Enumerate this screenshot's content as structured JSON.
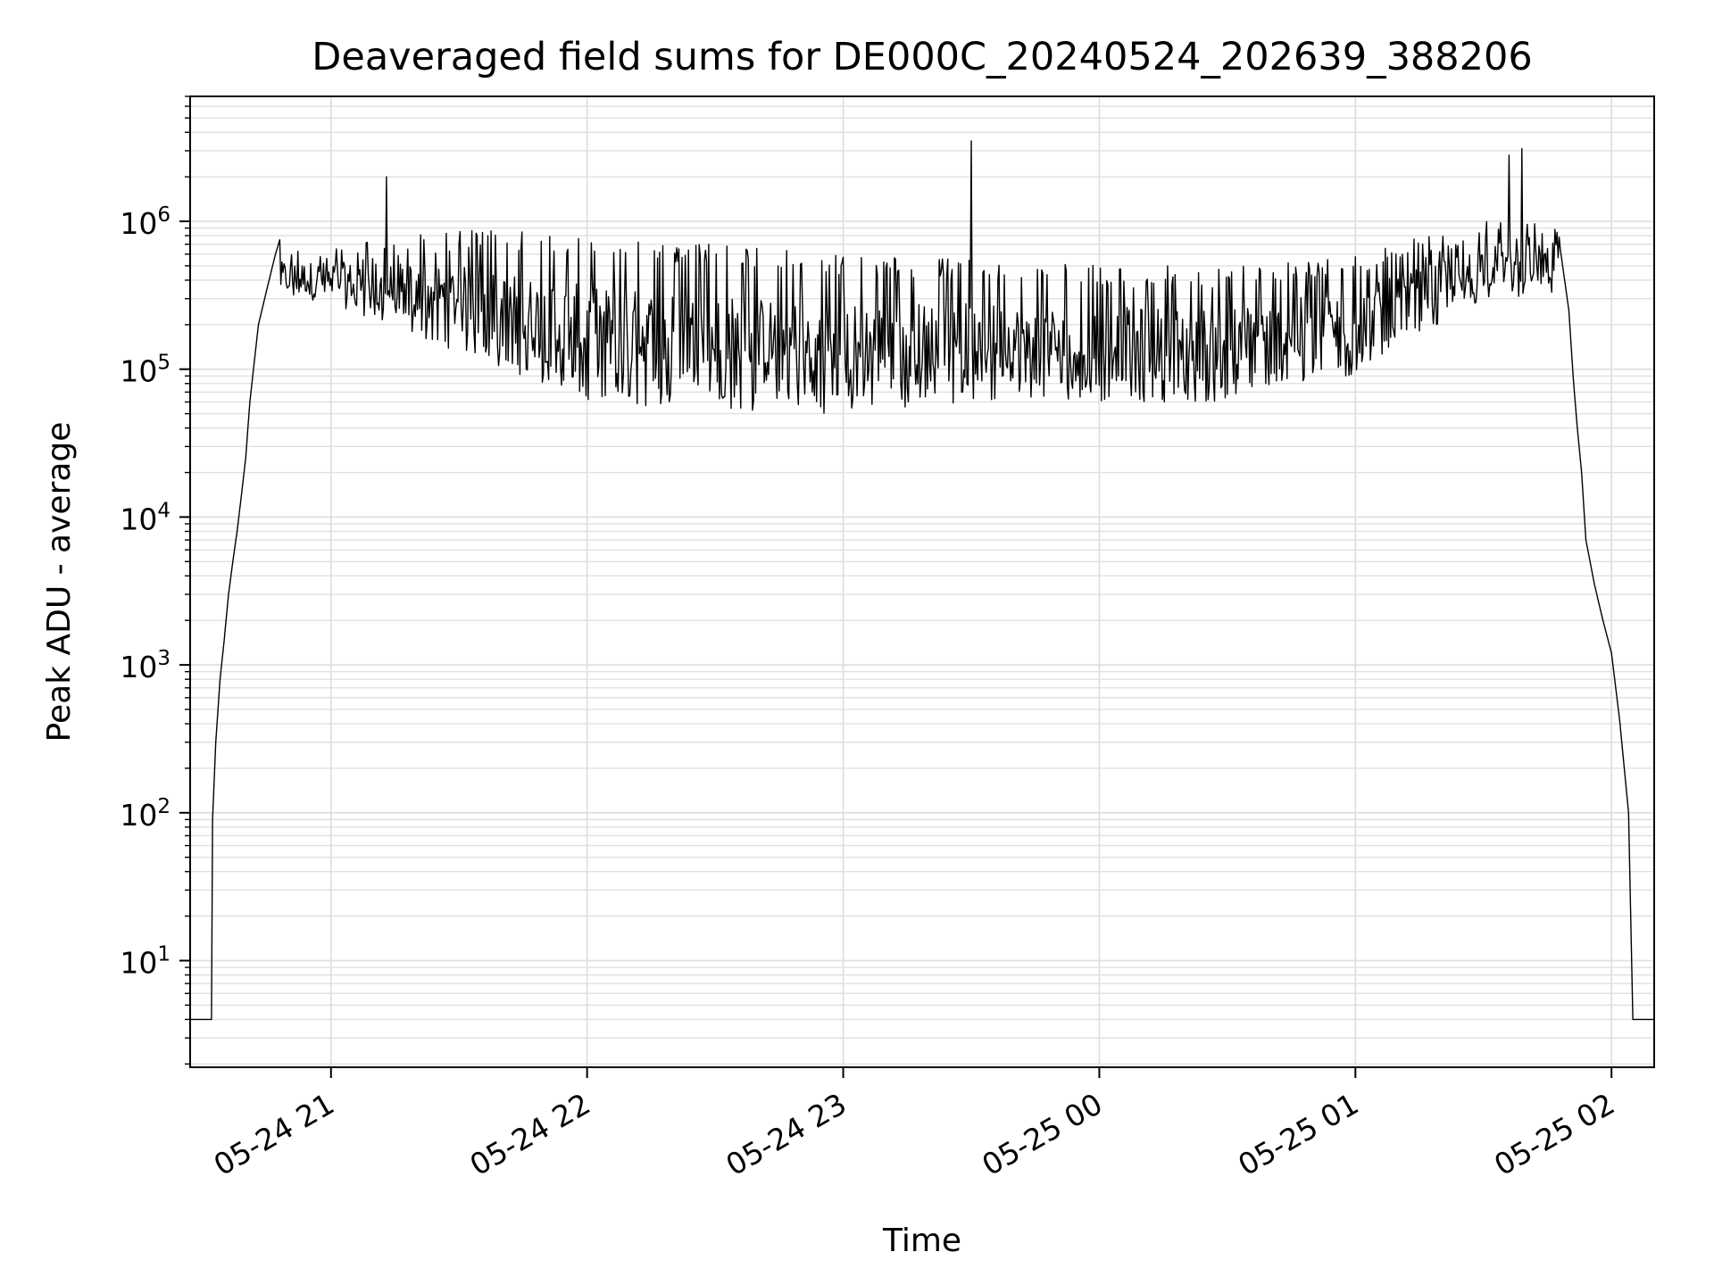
{
  "chart_data": {
    "type": "line",
    "title": "Deaveraged field sums for DE000C_20240524_202639_388206",
    "xlabel": "Time",
    "ylabel": "Peak ADU - average",
    "y_scale": "log",
    "grid": true,
    "line_color": "#000000",
    "grid_color": "#e0e0e0",
    "xlim": [
      "2024-05-24 20:27",
      "2024-05-25 02:10"
    ],
    "ylim": [
      1.9,
      7000000
    ],
    "x_ticks": [
      {
        "label": "05-24 21",
        "time": "2024-05-24 21:00"
      },
      {
        "label": "05-24 22",
        "time": "2024-05-24 22:00"
      },
      {
        "label": "05-24 23",
        "time": "2024-05-24 23:00"
      },
      {
        "label": "05-25 00",
        "time": "2024-05-25 00:00"
      },
      {
        "label": "05-25 01",
        "time": "2024-05-25 01:00"
      },
      {
        "label": "05-25 02",
        "time": "2024-05-25 02:00"
      }
    ],
    "y_ticks": [
      {
        "base": "10",
        "exp": "1",
        "value": 10
      },
      {
        "base": "10",
        "exp": "2",
        "value": 100
      },
      {
        "base": "10",
        "exp": "3",
        "value": 1000
      },
      {
        "base": "10",
        "exp": "4",
        "value": 10000
      },
      {
        "base": "10",
        "exp": "5",
        "value": 100000
      },
      {
        "base": "10",
        "exp": "6",
        "value": 1000000
      }
    ],
    "series": [
      {
        "points": [
          [
            "2024-05-24 20:27",
            4
          ],
          [
            "2024-05-24 20:32",
            4
          ],
          [
            "2024-05-24 20:32",
            60
          ],
          [
            "2024-05-24 20:33",
            300
          ],
          [
            "2024-05-24 20:34",
            800
          ],
          [
            "2024-05-24 20:35",
            1500
          ],
          [
            "2024-05-24 20:36",
            3000
          ],
          [
            "2024-05-24 20:37",
            5000
          ],
          [
            "2024-05-24 20:38",
            8000
          ],
          [
            "2024-05-24 20:39",
            14000
          ],
          [
            "2024-05-24 20:40",
            25000
          ],
          [
            "2024-05-24 20:41",
            60000
          ],
          [
            "2024-05-24 20:42",
            110000
          ],
          [
            "2024-05-24 20:43",
            200000
          ],
          [
            "2024-05-24 20:45",
            350000
          ],
          [
            "2024-05-24 20:47",
            600000
          ],
          [
            "2024-05-24 20:48",
            750000
          ],
          [
            "2024-05-24 20:52",
            650000
          ],
          [
            "2024-05-24 20:55",
            550000
          ],
          [
            "2024-05-24 20:58",
            600000
          ],
          [
            "2024-05-24 21:00",
            500000
          ],
          [
            "2024-05-24 21:05",
            450000
          ],
          [
            "2024-05-24 21:10",
            400000
          ],
          [
            "2024-05-24 21:13",
            2000000
          ],
          [
            "2024-05-24 21:14",
            400000
          ],
          [
            "2024-05-24 21:20",
            350000
          ],
          [
            "2024-05-24 21:30",
            300000
          ],
          [
            "2024-05-24 21:40",
            200000
          ],
          [
            "2024-05-24 21:50",
            160000
          ],
          [
            "2024-05-24 22:00",
            140000
          ],
          [
            "2024-05-24 22:15",
            130000
          ],
          [
            "2024-05-24 22:30",
            110000
          ],
          [
            "2024-05-24 22:45",
            100000
          ],
          [
            "2024-05-24 23:00",
            100000
          ],
          [
            "2024-05-24 23:15",
            110000
          ],
          [
            "2024-05-24 23:28",
            120000
          ],
          [
            "2024-05-24 23:30",
            3500000
          ],
          [
            "2024-05-24 23:31",
            120000
          ],
          [
            "2024-05-24 23:45",
            110000
          ],
          [
            "2024-05-25 00:00",
            120000
          ],
          [
            "2024-05-25 00:15",
            150000
          ],
          [
            "2024-05-25 00:30",
            140000
          ],
          [
            "2024-05-25 00:45",
            140000
          ],
          [
            "2024-05-25 01:00",
            150000
          ],
          [
            "2024-05-25 01:10",
            220000
          ],
          [
            "2024-05-25 01:20",
            420000
          ],
          [
            "2024-05-25 01:30",
            500000
          ],
          [
            "2024-05-25 01:36",
            2800000
          ],
          [
            "2024-05-25 01:37",
            450000
          ],
          [
            "2024-05-25 01:39",
            3100000
          ],
          [
            "2024-05-25 01:40",
            500000
          ],
          [
            "2024-05-25 01:45",
            750000
          ],
          [
            "2024-05-25 01:48",
            650000
          ],
          [
            "2024-05-25 01:50",
            250000
          ],
          [
            "2024-05-25 01:51",
            90000
          ],
          [
            "2024-05-25 01:52",
            40000
          ],
          [
            "2024-05-25 01:53",
            20000
          ],
          [
            "2024-05-25 01:54",
            7000
          ],
          [
            "2024-05-25 01:56",
            3500
          ],
          [
            "2024-05-25 01:58",
            2000
          ],
          [
            "2024-05-25 02:00",
            1200
          ],
          [
            "2024-05-25 02:02",
            400
          ],
          [
            "2024-05-25 02:04",
            100
          ],
          [
            "2024-05-25 02:05",
            4
          ],
          [
            "2024-05-25 02:10",
            4
          ]
        ],
        "noise_dips": [
          [
            "2024-05-24 21:00",
            280000
          ],
          [
            "2024-05-24 21:30",
            130000
          ],
          [
            "2024-05-24 22:00",
            60000
          ],
          [
            "2024-05-24 22:30",
            52000
          ],
          [
            "2024-05-24 23:00",
            50000
          ],
          [
            "2024-05-24 23:30",
            60000
          ],
          [
            "2024-05-25 00:00",
            60000
          ],
          [
            "2024-05-25 00:30",
            60000
          ],
          [
            "2024-05-25 01:00",
            90000
          ],
          [
            "2024-05-25 01:30",
            300000
          ]
        ],
        "noise_peaks": [
          [
            "2024-05-24 21:00",
            700000
          ],
          [
            "2024-05-24 21:30",
            900000
          ],
          [
            "2024-05-24 22:00",
            800000
          ],
          [
            "2024-05-24 22:30",
            700000
          ],
          [
            "2024-05-24 23:00",
            600000
          ],
          [
            "2024-05-24 23:30",
            550000
          ],
          [
            "2024-05-25 00:00",
            500000
          ],
          [
            "2024-05-25 00:30",
            500000
          ],
          [
            "2024-05-25 01:00",
            600000
          ],
          [
            "2024-05-25 01:30",
            1000000
          ]
        ]
      }
    ]
  }
}
